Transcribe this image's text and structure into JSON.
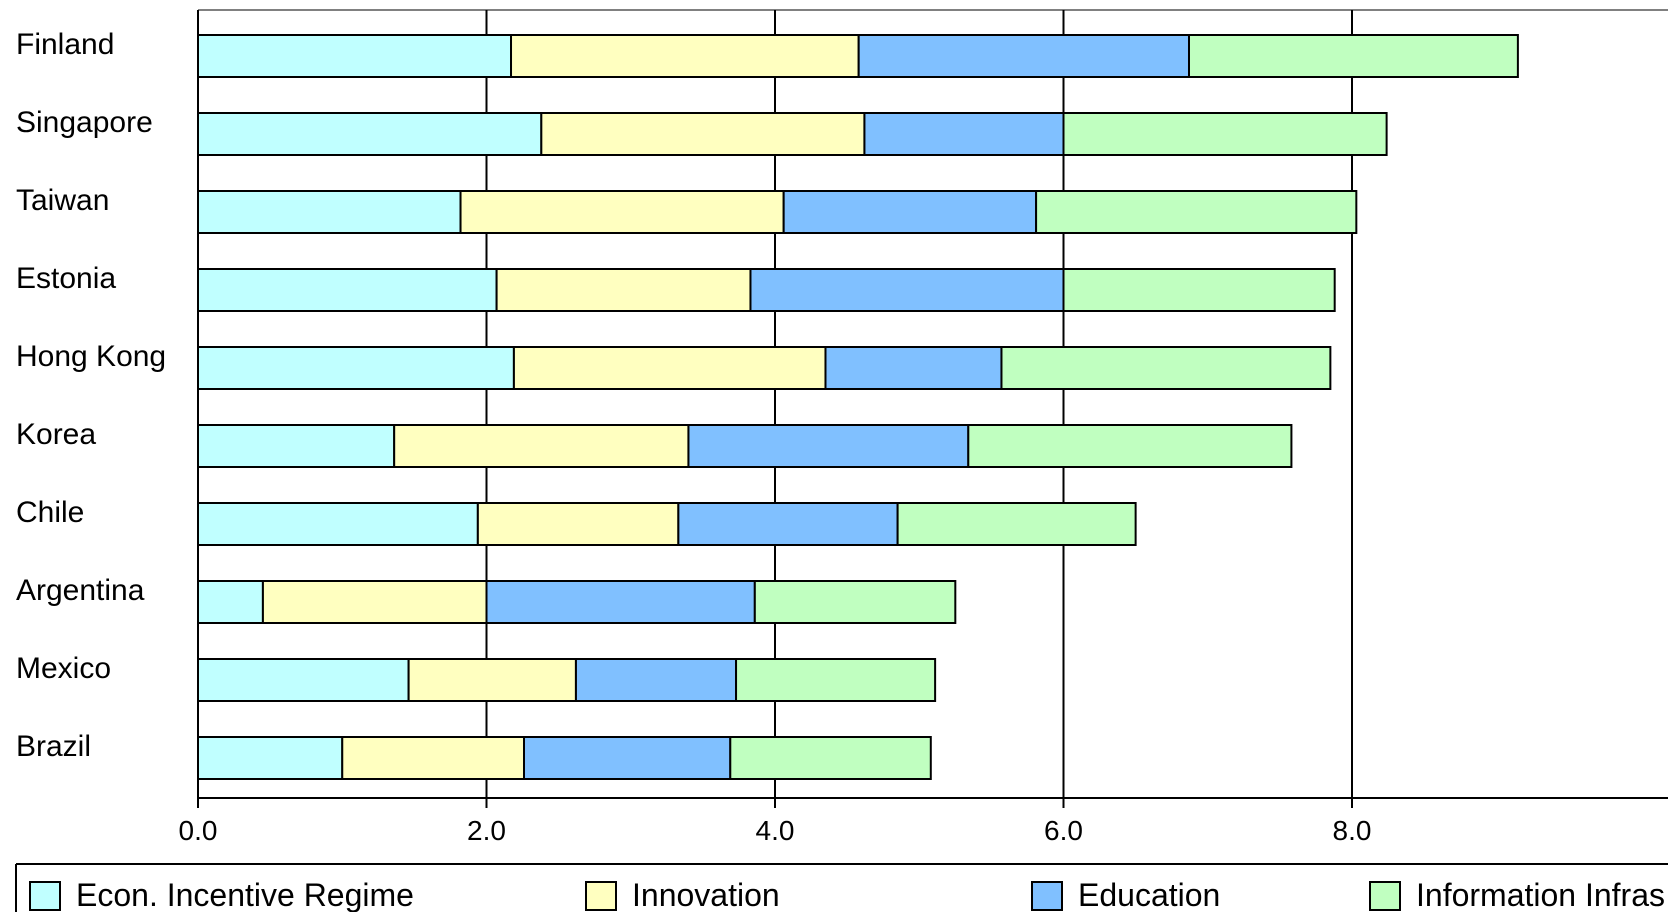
{
  "chart_data": {
    "type": "bar",
    "orientation": "horizontal",
    "stacked": true,
    "title": "",
    "xlabel": "",
    "ylabel": "",
    "xlim": [
      0,
      9.3
    ],
    "xticks": [
      "0.0",
      "2.0",
      "4.0",
      "6.0",
      "8.0"
    ],
    "xtick_values": [
      0,
      2,
      4,
      6,
      8
    ],
    "grid": true,
    "legend_position": "bottom",
    "categories": [
      "Finland",
      "Singapore",
      "Taiwan",
      "Estonia",
      "Hong Kong",
      "Korea",
      "Chile",
      "Argentina",
      "Mexico",
      "Brazil"
    ],
    "series": [
      {
        "name": "Econ. Incentive Regime",
        "color": "#c0ffff",
        "values": [
          2.17,
          2.38,
          1.82,
          2.07,
          2.19,
          1.36,
          1.94,
          0.45,
          1.46,
          1.0
        ]
      },
      {
        "name": "Innovation",
        "color": "#ffffc0",
        "values": [
          2.41,
          2.24,
          2.24,
          1.76,
          2.16,
          2.04,
          1.39,
          1.55,
          1.16,
          1.26
        ]
      },
      {
        "name": "Education",
        "color": "#80c0ff",
        "values": [
          2.29,
          1.38,
          1.75,
          2.17,
          1.22,
          1.94,
          1.52,
          1.86,
          1.11,
          1.43
        ]
      },
      {
        "name": "Information Infrastructure",
        "color": "#c0ffc0",
        "values": [
          2.28,
          2.24,
          2.22,
          1.88,
          2.28,
          2.24,
          1.65,
          1.39,
          1.38,
          1.39
        ]
      }
    ],
    "legend_labels": [
      "Econ. Incentive Regime",
      "Innovation",
      "Education",
      "Information Infras"
    ]
  }
}
